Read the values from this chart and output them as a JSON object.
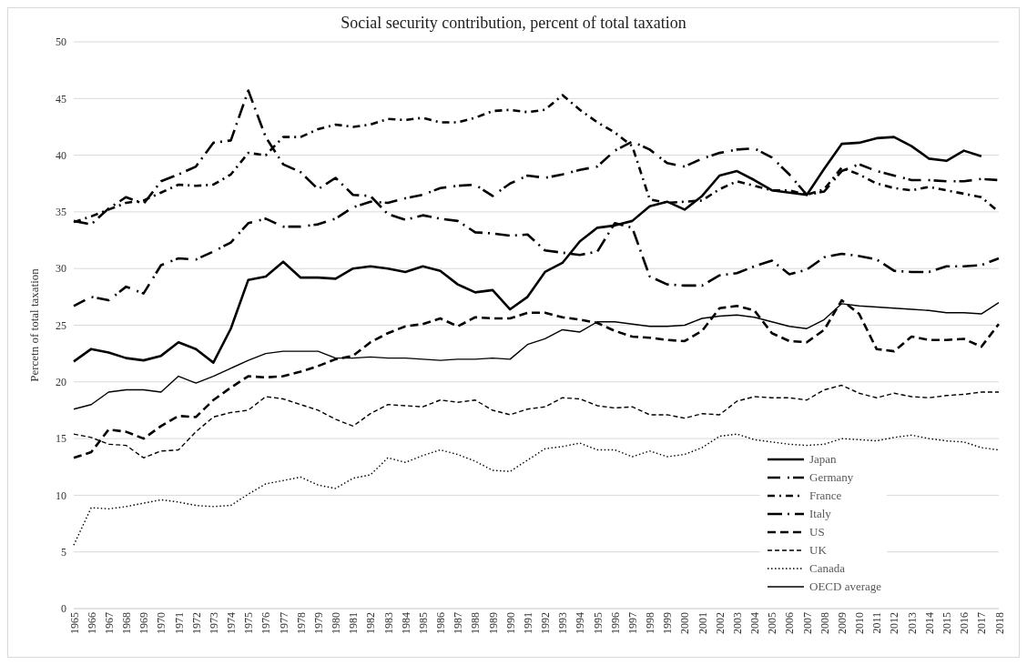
{
  "chart_data": {
    "type": "line",
    "title": "Social security contribution, percent of total taxation",
    "ylabel": "Percetn of total taxation",
    "categories": [
      "1965",
      "1966",
      "1967",
      "1968",
      "1969",
      "1970",
      "1971",
      "1972",
      "1973",
      "1974",
      "1975",
      "1976",
      "1977",
      "1978",
      "1979",
      "1980",
      "1981",
      "1982",
      "1983",
      "1984",
      "1985",
      "1986",
      "1987",
      "1988",
      "1989",
      "1990",
      "1991",
      "1992",
      "1993",
      "1994",
      "1995",
      "1996",
      "1997",
      "1998",
      "1999",
      "2000",
      "2001",
      "2002",
      "2003",
      "2004",
      "2005",
      "2006",
      "2007",
      "2008",
      "2009",
      "2010",
      "2011",
      "2012",
      "2013",
      "2014",
      "2015",
      "2016",
      "2017",
      "2018"
    ],
    "ylim": [
      0,
      50
    ],
    "yticks": [
      0,
      5,
      10,
      15,
      20,
      25,
      30,
      35,
      40,
      45,
      50
    ],
    "grid": "y",
    "legend": "bottom right",
    "series": [
      {
        "name": "Japan",
        "color": "#000000",
        "line_style": "solid",
        "values": [
          21.8,
          22.9,
          22.6,
          22.1,
          21.9,
          22.3,
          23.5,
          22.9,
          21.7,
          24.7,
          29.0,
          29.3,
          30.6,
          29.2,
          29.2,
          29.1,
          30.0,
          30.2,
          30.0,
          29.7,
          30.2,
          29.8,
          28.6,
          27.9,
          28.1,
          26.4,
          27.5,
          29.7,
          30.5,
          32.4,
          33.6,
          33.8,
          34.2,
          35.5,
          35.9,
          35.2,
          36.4,
          38.2,
          38.6,
          37.8,
          36.9,
          36.7,
          36.5,
          38.8,
          41.0,
          41.1,
          41.5,
          41.6,
          40.8,
          39.7,
          39.5,
          40.4,
          39.9,
          null
        ]
      },
      {
        "name": "Germany",
        "color": "#000000",
        "line_style": "dashdot",
        "values": [
          26.7,
          27.5,
          27.2,
          28.4,
          27.8,
          30.3,
          30.9,
          30.8,
          31.5,
          32.3,
          34.0,
          34.4,
          33.7,
          33.7,
          33.9,
          34.4,
          35.4,
          35.9,
          35.8,
          36.2,
          36.5,
          37.1,
          37.3,
          37.4,
          36.4,
          37.5,
          38.2,
          38.0,
          38.3,
          38.7,
          39.0,
          40.4,
          41.2,
          40.5,
          39.3,
          39.0,
          39.7,
          40.2,
          40.5,
          40.6,
          39.8,
          38.3,
          36.5,
          36.8,
          38.6,
          39.2,
          38.6,
          38.2,
          37.8,
          37.8,
          37.7,
          37.7,
          37.9,
          37.8
        ]
      },
      {
        "name": "France",
        "color": "#000000",
        "line_style": "dashdot",
        "values": [
          34.1,
          34.6,
          35.2,
          35.8,
          36.0,
          36.7,
          37.4,
          37.3,
          37.4,
          38.3,
          40.2,
          40.0,
          41.6,
          41.6,
          42.3,
          42.7,
          42.5,
          42.7,
          43.2,
          43.1,
          43.3,
          42.9,
          42.9,
          43.3,
          43.9,
          44.0,
          43.8,
          44.0,
          45.3,
          44.0,
          42.9,
          42.0,
          40.8,
          36.1,
          35.8,
          35.9,
          36.0,
          37.0,
          37.7,
          37.3,
          36.9,
          36.9,
          36.5,
          37.0,
          38.9,
          38.3,
          37.5,
          37.1,
          36.9,
          37.2,
          36.9,
          36.6,
          36.3,
          35.0
        ]
      },
      {
        "name": "Italy",
        "color": "#000000",
        "line_style": "dashdot",
        "values": [
          34.2,
          33.9,
          35.3,
          36.3,
          35.7,
          37.7,
          38.3,
          39.0,
          41.1,
          41.3,
          45.7,
          41.6,
          39.2,
          38.5,
          37.0,
          38.0,
          36.5,
          36.4,
          34.8,
          34.3,
          34.7,
          34.4,
          34.2,
          33.2,
          33.1,
          32.9,
          33.0,
          31.6,
          31.4,
          31.2,
          31.5,
          34.0,
          33.6,
          29.3,
          28.6,
          28.5,
          28.5,
          29.4,
          29.6,
          30.2,
          30.7,
          29.5,
          29.9,
          31.0,
          31.3,
          31.1,
          30.8,
          29.8,
          29.7,
          29.7,
          30.2,
          30.2,
          30.3,
          30.9
        ]
      },
      {
        "name": "US",
        "color": "#000000",
        "line_style": "dashed",
        "values": [
          13.3,
          13.8,
          15.8,
          15.6,
          15.0,
          16.1,
          17.0,
          16.9,
          18.4,
          19.5,
          20.5,
          20.4,
          20.5,
          20.9,
          21.4,
          22.0,
          22.3,
          23.5,
          24.3,
          24.9,
          25.1,
          25.6,
          24.9,
          25.7,
          25.6,
          25.6,
          26.1,
          26.1,
          25.7,
          25.5,
          25.2,
          24.5,
          24.0,
          23.9,
          23.7,
          23.6,
          24.5,
          26.5,
          26.7,
          26.3,
          24.3,
          23.6,
          23.5,
          24.6,
          27.2,
          26.0,
          22.9,
          22.7,
          24.0,
          23.7,
          23.7,
          23.8,
          23.1,
          25.1
        ]
      },
      {
        "name": "UK",
        "color": "#000000",
        "line_style": "dashed",
        "values": [
          15.4,
          15.1,
          14.5,
          14.4,
          13.3,
          13.9,
          14.0,
          15.6,
          16.9,
          17.3,
          17.5,
          18.7,
          18.5,
          18.0,
          17.5,
          16.7,
          16.1,
          17.2,
          18.0,
          17.9,
          17.8,
          18.4,
          18.2,
          18.4,
          17.5,
          17.1,
          17.6,
          17.8,
          18.6,
          18.5,
          17.9,
          17.7,
          17.8,
          17.1,
          17.1,
          16.8,
          17.2,
          17.1,
          18.3,
          18.7,
          18.6,
          18.6,
          18.4,
          19.3,
          19.7,
          19.0,
          18.6,
          19.0,
          18.7,
          18.6,
          18.8,
          18.9,
          19.1,
          19.1
        ]
      },
      {
        "name": "Canada",
        "color": "#000000",
        "line_style": "dotted",
        "values": [
          5.6,
          8.9,
          8.8,
          9.0,
          9.3,
          9.6,
          9.4,
          9.1,
          9.0,
          9.1,
          10.1,
          11.0,
          11.3,
          11.6,
          10.9,
          10.6,
          11.5,
          11.8,
          13.3,
          12.9,
          13.5,
          14.0,
          13.6,
          13.0,
          12.2,
          12.1,
          13.1,
          14.1,
          14.3,
          14.6,
          14.0,
          14.0,
          13.4,
          13.9,
          13.4,
          13.6,
          14.2,
          15.2,
          15.4,
          14.9,
          14.7,
          14.5,
          14.4,
          14.5,
          15.0,
          14.9,
          14.8,
          15.1,
          15.3,
          15.0,
          14.8,
          14.7,
          14.2,
          14.0
        ]
      },
      {
        "name": "OECD average",
        "color": "#000000",
        "line_style": "solid",
        "values": [
          17.6,
          18.0,
          19.1,
          19.3,
          19.3,
          19.1,
          20.5,
          19.9,
          20.5,
          21.2,
          21.9,
          22.5,
          22.7,
          22.7,
          22.7,
          22.1,
          22.1,
          22.2,
          22.1,
          22.1,
          22.0,
          21.9,
          22.0,
          22.0,
          22.1,
          22.0,
          23.3,
          23.8,
          24.6,
          24.4,
          25.3,
          25.3,
          25.1,
          24.9,
          24.9,
          25.0,
          25.6,
          25.8,
          25.9,
          25.7,
          25.3,
          24.9,
          24.7,
          25.5,
          26.9,
          26.7,
          26.6,
          26.5,
          26.4,
          26.3,
          26.1,
          26.1,
          26.0,
          27.0
        ]
      }
    ]
  }
}
